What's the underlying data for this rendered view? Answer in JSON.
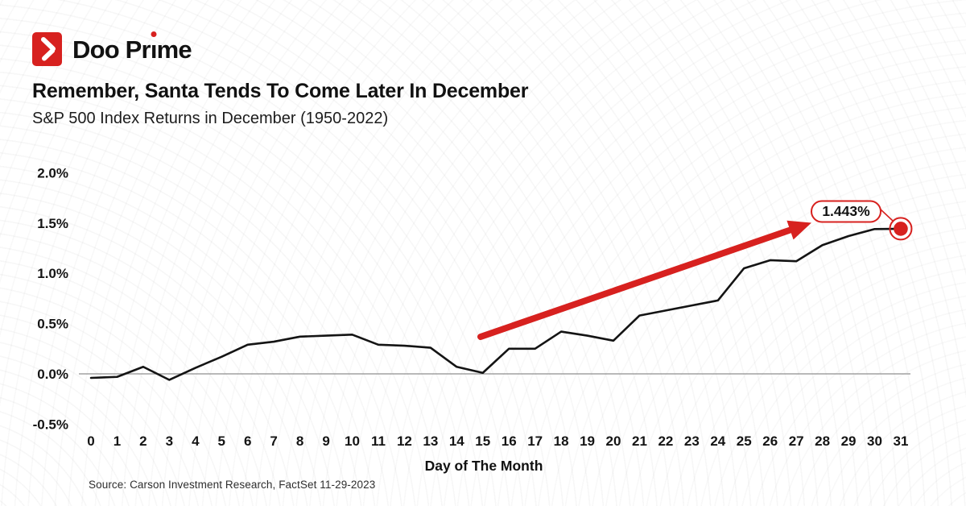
{
  "brand": {
    "name": "Doo Prime",
    "pre": "Doo Pr",
    "i": "ı",
    "post": "me"
  },
  "header": {
    "title": "Remember, Santa Tends To Come Later In December",
    "subtitle": "S&P 500 Index Returns in December (1950-2022)"
  },
  "chart_data": {
    "type": "line",
    "title": "Remember, Santa Tends To Come Later In December",
    "subtitle": "S&P 500 Index Returns in December (1950-2022)",
    "x_label": "Day of The Month",
    "x": [
      0,
      1,
      2,
      3,
      4,
      5,
      6,
      7,
      8,
      9,
      10,
      11,
      12,
      13,
      14,
      15,
      16,
      17,
      18,
      19,
      20,
      21,
      22,
      23,
      24,
      25,
      26,
      27,
      28,
      29,
      30,
      31
    ],
    "values": [
      -0.04,
      -0.03,
      0.07,
      -0.06,
      0.06,
      0.17,
      0.29,
      0.32,
      0.37,
      0.38,
      0.39,
      0.29,
      0.28,
      0.26,
      0.07,
      0.01,
      0.25,
      0.25,
      0.42,
      0.38,
      0.33,
      0.58,
      0.63,
      0.68,
      0.73,
      1.05,
      1.13,
      1.12,
      1.28,
      1.37,
      1.44,
      1.443
    ],
    "y_ticks": [
      {
        "label": "2.0%",
        "value": 2.0
      },
      {
        "label": "1.5%",
        "value": 1.5
      },
      {
        "label": "1.0%",
        "value": 1.0
      },
      {
        "label": "0.5%",
        "value": 0.5
      },
      {
        "label": "0.0%",
        "value": 0.0
      },
      {
        "label": "-0.5%",
        "value": -0.5
      }
    ],
    "ylim": [
      -0.5,
      2.0
    ],
    "grid": "zero-line-only",
    "legend": "none",
    "annotation": {
      "label": "1.443%",
      "day": 31
    },
    "unit": "%"
  },
  "theme": {
    "accent": "#d7211f",
    "line": "#141414",
    "axis": "#8f8f8f",
    "text": "#111111",
    "background": "#ffffff"
  },
  "footer": {
    "source": "Source: Carson Investment Research, FactSet 11-29-2023"
  }
}
